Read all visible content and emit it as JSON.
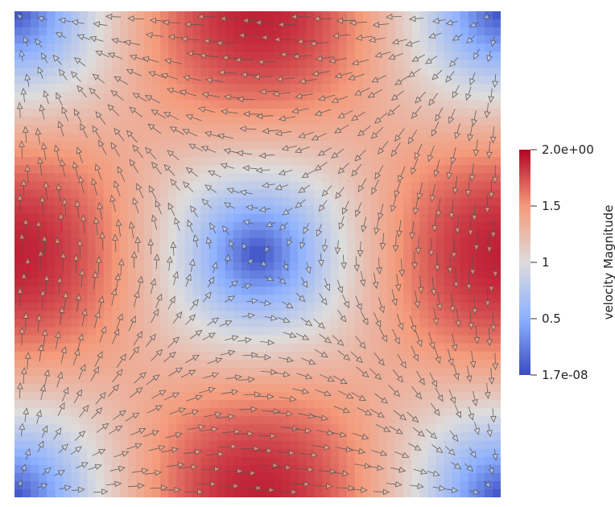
{
  "scene": {
    "field": "velocity",
    "pattern": "single clockwise vortex",
    "glyph": "arrow"
  },
  "colorbar": {
    "title": "velocity Magnitude",
    "colormap": "cool-to-warm",
    "colors": [
      "#3b4cc0",
      "#8db0fe",
      "#dddcdc",
      "#f49a7b",
      "#b40426"
    ],
    "min": 1.7e-08,
    "max": 2.0,
    "ticks": [
      {
        "value": 2.0,
        "label": "2.0e+00"
      },
      {
        "value": 1.5,
        "label": "1.5"
      },
      {
        "value": 1.0,
        "label": "1"
      },
      {
        "value": 0.5,
        "label": "0.5"
      },
      {
        "value": 1.7e-08,
        "label": "1.7e-08"
      }
    ]
  }
}
